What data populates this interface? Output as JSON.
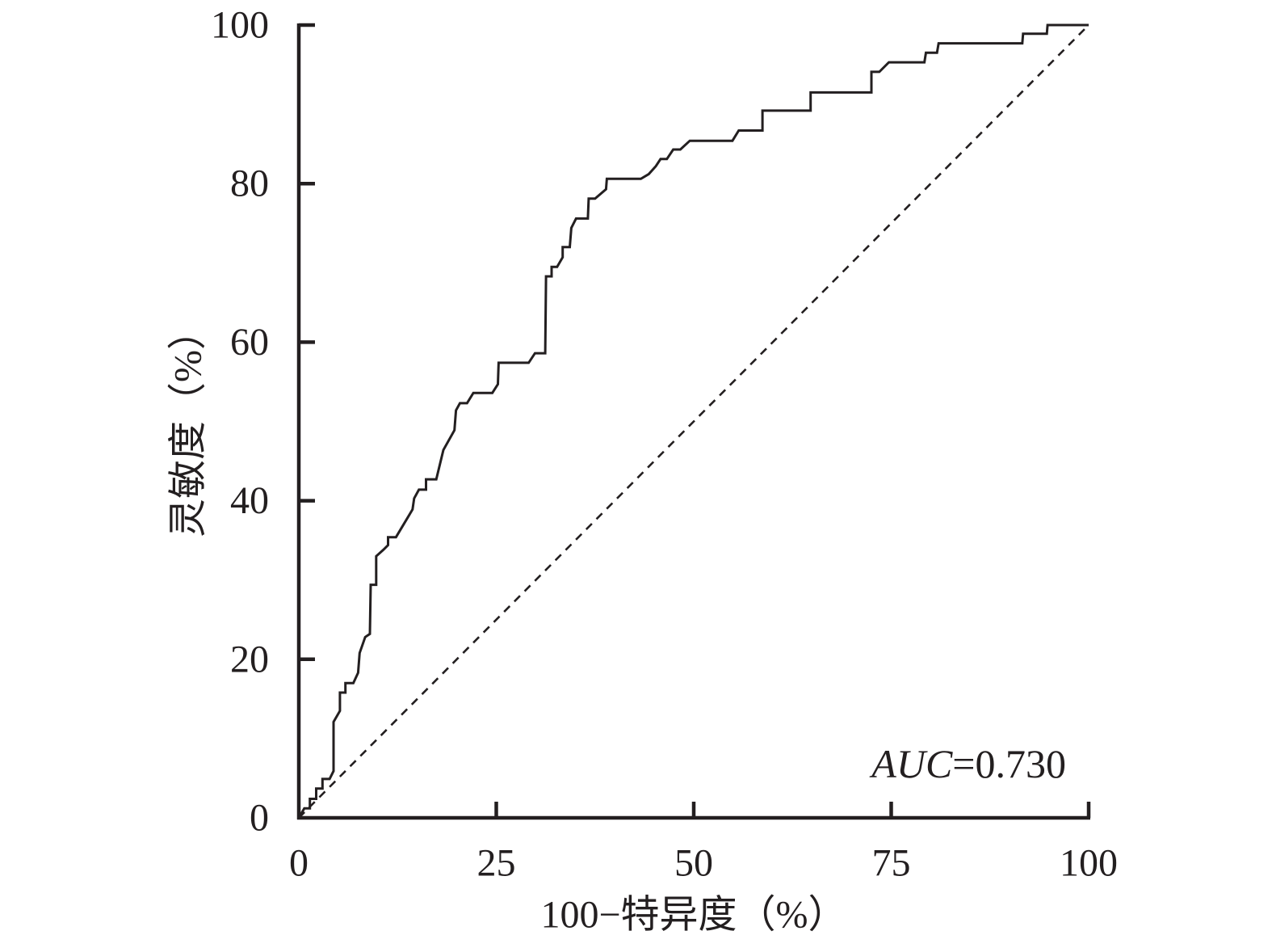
{
  "chart_data": {
    "type": "line",
    "xlabel": "100−特异度（%）",
    "ylabel": "灵敏度（%）",
    "xlim": [
      0,
      100
    ],
    "ylim": [
      0,
      100
    ],
    "xticks": [
      0,
      25,
      50,
      75,
      100
    ],
    "yticks": [
      0,
      20,
      40,
      60,
      80,
      100
    ],
    "grid": false,
    "legend": "none",
    "axis_color": "#231f20",
    "annotation": {
      "label": "AUC",
      "text": "=0.730",
      "placement": "bottom-right"
    },
    "series": [
      {
        "line_style": "solid",
        "color": "#231f20",
        "x": [
          0,
          0.7,
          1.4,
          1.4,
          2.2,
          2.2,
          3.0,
          3.0,
          3.9,
          4.4,
          4.4,
          5.2,
          5.2,
          5.9,
          5.9,
          6.9,
          7.5,
          7.7,
          8.4,
          9.0,
          9.1,
          9.8,
          9.8,
          10.7,
          11.3,
          11.3,
          12.3,
          14.4,
          14.6,
          15.2,
          16.1,
          16.1,
          17.4,
          18.3,
          19.7,
          19.9,
          20.4,
          21.3,
          22.1,
          24.5,
          25.2,
          25.3,
          29.1,
          29.9,
          31.2,
          31.3,
          32.0,
          32.0,
          32.7,
          33.4,
          33.4,
          34.3,
          34.5,
          35.1,
          36.6,
          36.7,
          37.5,
          38.9,
          39.0,
          43.3,
          44.3,
          45.2,
          45.8,
          46.6,
          47.4,
          48.3,
          49.5,
          54.9,
          55.7,
          58.7,
          58.7,
          64.8,
          64.8,
          72.5,
          72.5,
          73.5,
          74.7,
          79.2,
          79.4,
          80.8,
          81.0,
          91.6,
          91.7,
          94.7,
          94.8,
          100
        ],
        "y": [
          0,
          1.2,
          1.2,
          2.4,
          2.4,
          3.7,
          3.7,
          4.9,
          4.9,
          5.9,
          12.1,
          13.5,
          15.8,
          15.8,
          17.0,
          17.0,
          18.3,
          20.8,
          22.8,
          23.2,
          29.4,
          29.4,
          33.0,
          33.8,
          34.4,
          35.4,
          35.4,
          38.9,
          40.3,
          41.4,
          41.4,
          42.7,
          42.7,
          46.4,
          48.9,
          51.4,
          52.3,
          52.3,
          53.6,
          53.6,
          54.7,
          57.4,
          57.4,
          58.6,
          58.6,
          68.3,
          68.3,
          69.5,
          69.5,
          70.7,
          72.0,
          72.0,
          74.4,
          75.6,
          75.6,
          78.1,
          78.1,
          79.3,
          80.6,
          80.6,
          81.2,
          82.2,
          83.1,
          83.1,
          84.3,
          84.3,
          85.4,
          85.4,
          86.7,
          86.7,
          89.2,
          89.2,
          91.5,
          91.5,
          94.1,
          94.1,
          95.3,
          95.3,
          96.5,
          96.5,
          97.7,
          97.7,
          98.9,
          98.9,
          100,
          100
        ]
      },
      {
        "line_style": "dashed",
        "color": "#231f20",
        "x": [
          0,
          100
        ],
        "y": [
          0,
          100
        ]
      }
    ]
  }
}
